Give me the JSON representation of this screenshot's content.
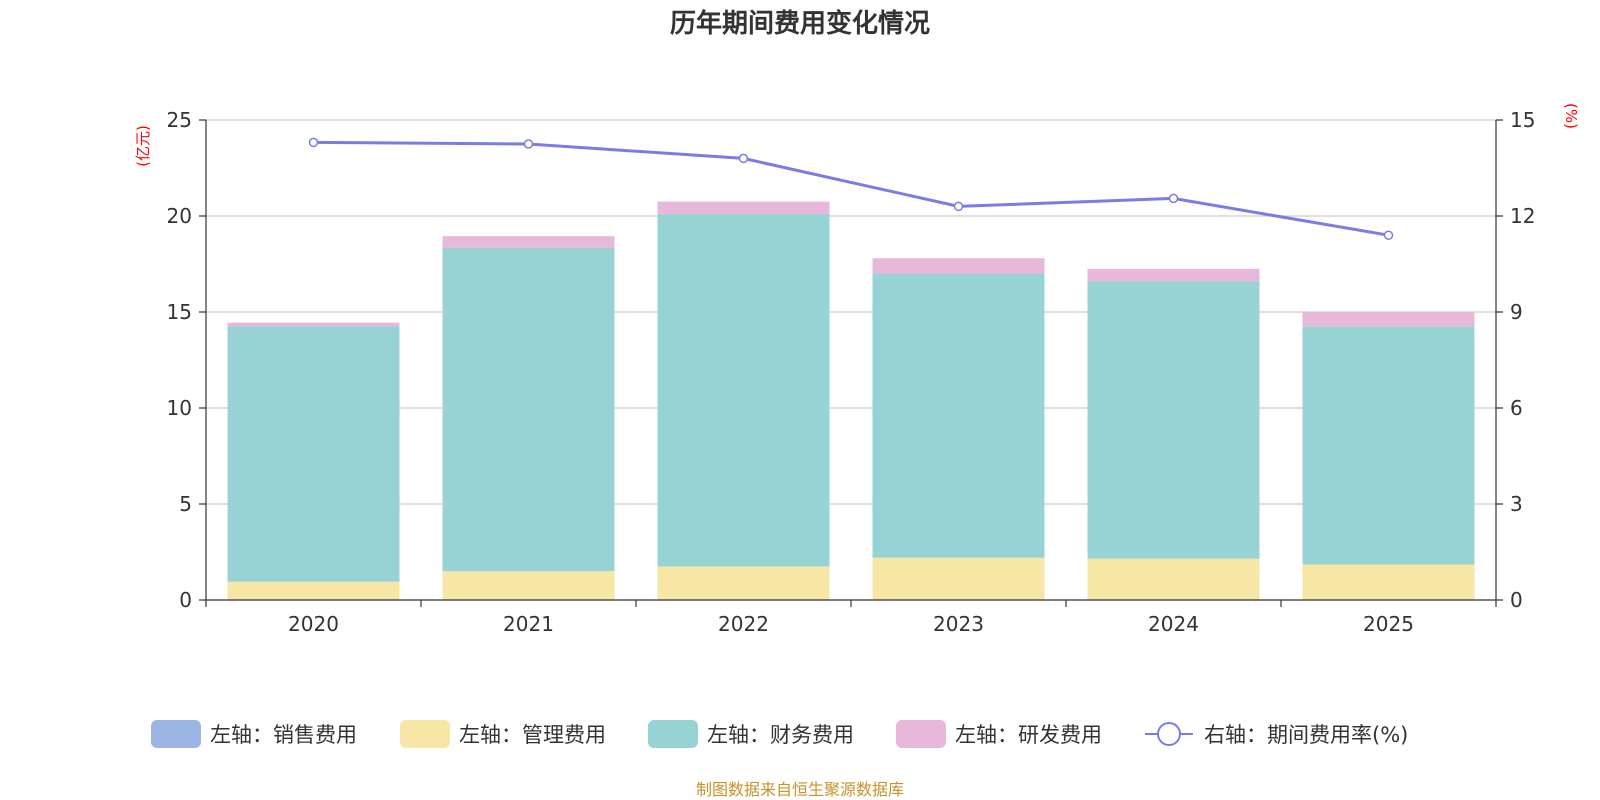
{
  "chart_data": {
    "type": "bar",
    "stacked": true,
    "title": "历年期间费用变化情况",
    "categories": [
      "2020",
      "2021",
      "2022",
      "2023",
      "2024",
      "2025"
    ],
    "left_axis": {
      "unit": "(亿元)",
      "ylim": [
        0,
        25
      ],
      "ticks": [
        "0",
        "5",
        "10",
        "15",
        "20",
        "25"
      ]
    },
    "right_axis": {
      "unit": "(%)",
      "ylim": [
        0,
        15
      ],
      "ticks": [
        "0",
        "3",
        "6",
        "9",
        "12",
        "15"
      ]
    },
    "series": [
      {
        "name": "销售费用",
        "legend": "左轴：销售费用",
        "axis": "left",
        "color": "#9db5e3",
        "values": [
          0,
          0,
          0,
          0,
          0,
          0
        ]
      },
      {
        "name": "管理费用",
        "legend": "左轴：管理费用",
        "axis": "left",
        "color": "#f8e6a6",
        "values": [
          0.95,
          1.5,
          1.75,
          2.2,
          2.15,
          1.85
        ]
      },
      {
        "name": "财务费用",
        "legend": "左轴：财务费用",
        "axis": "left",
        "color": "#97d3d4",
        "values": [
          13.3,
          16.85,
          18.35,
          14.8,
          14.45,
          12.4
        ]
      },
      {
        "name": "研发费用",
        "legend": "左轴：研发费用",
        "axis": "left",
        "color": "#e7b8d9",
        "values": [
          0.2,
          0.6,
          0.65,
          0.8,
          0.65,
          0.75
        ]
      }
    ],
    "line": {
      "name": "期间费用率(%)",
      "legend": "右轴：期间费用率(%)",
      "axis": "right",
      "color": "#7b7be6",
      "values": [
        14.3,
        14.25,
        13.8,
        12.3,
        12.55,
        11.4
      ]
    },
    "grid": true,
    "legend_position": "bottom"
  },
  "source": "制图数据来自恒生聚源数据库"
}
